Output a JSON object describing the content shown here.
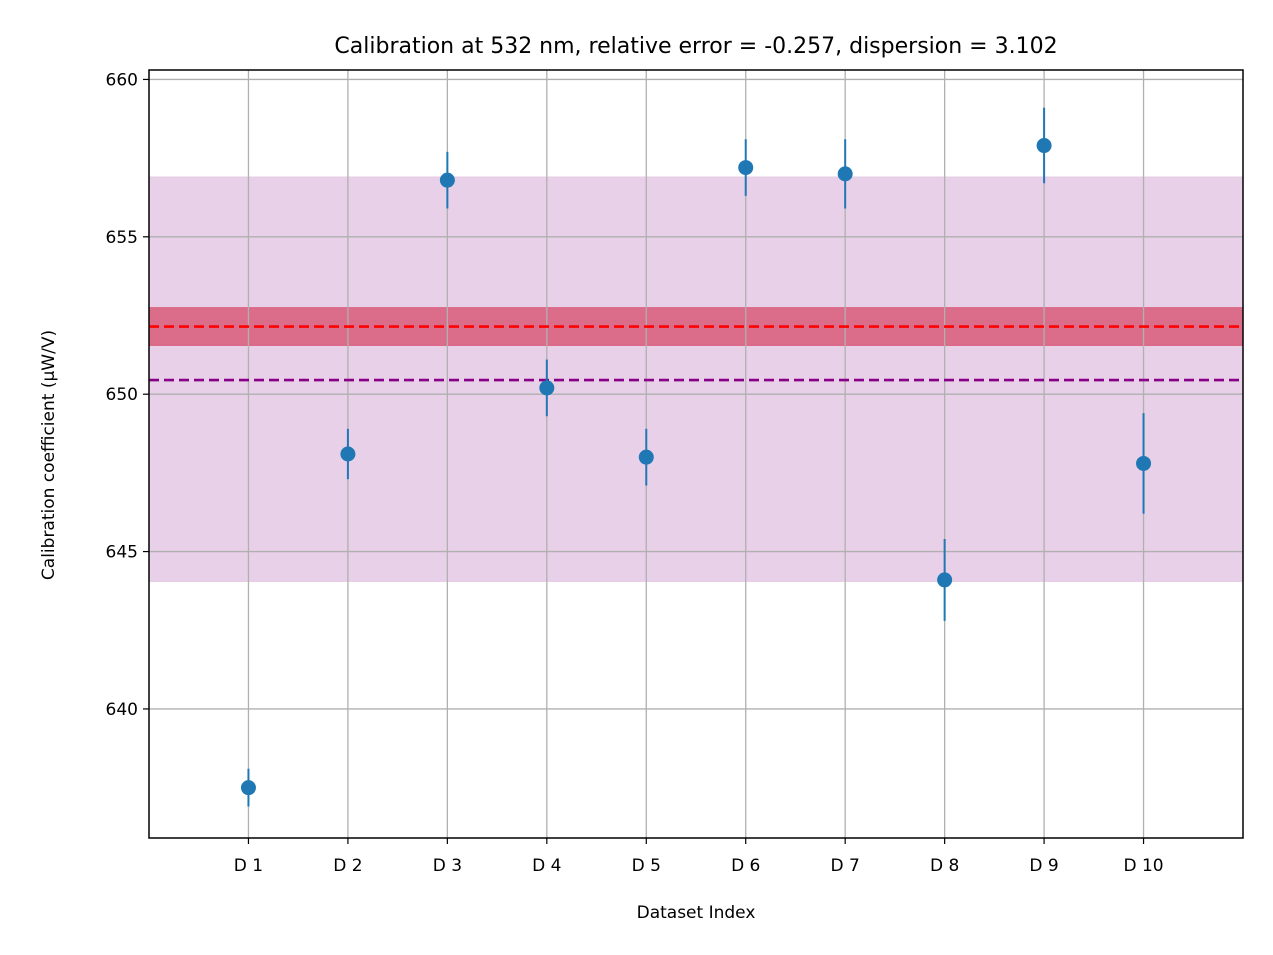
{
  "chart_data": {
    "type": "scatter",
    "title": "Calibration at 532 nm, relative error = -0.257, dispersion = 3.102",
    "xlabel": "Dataset Index",
    "ylabel": "Calibration coefficient (μW/V)",
    "categories": [
      "D 1",
      "D 2",
      "D 3",
      "D 4",
      "D 5",
      "D 6",
      "D 7",
      "D 8",
      "D 9",
      "D 10"
    ],
    "x": [
      1,
      2,
      3,
      4,
      5,
      6,
      7,
      8,
      9,
      10
    ],
    "values": [
      637.5,
      648.1,
      656.8,
      650.2,
      648.0,
      657.2,
      657.0,
      644.1,
      657.9,
      647.8
    ],
    "errors": [
      0.6,
      0.8,
      0.9,
      0.9,
      0.9,
      0.9,
      1.1,
      1.3,
      1.2,
      1.6
    ],
    "xlim": [
      0,
      11
    ],
    "ylim": [
      635.9,
      660.3
    ],
    "yticks": [
      640,
      645,
      650,
      655,
      660
    ],
    "grid": true,
    "reference_lines": [
      {
        "value": 652.15,
        "band": [
          651.55,
          652.75
        ],
        "line_color": "#ff0000",
        "band_color": "#d9607f"
      },
      {
        "value": 650.45,
        "band": [
          644.05,
          656.9
        ],
        "line_color": "#880088",
        "band_color": "#e5cbe5"
      }
    ],
    "colors": {
      "points": "#1f77b4",
      "grid": "#b0b0b0"
    }
  }
}
